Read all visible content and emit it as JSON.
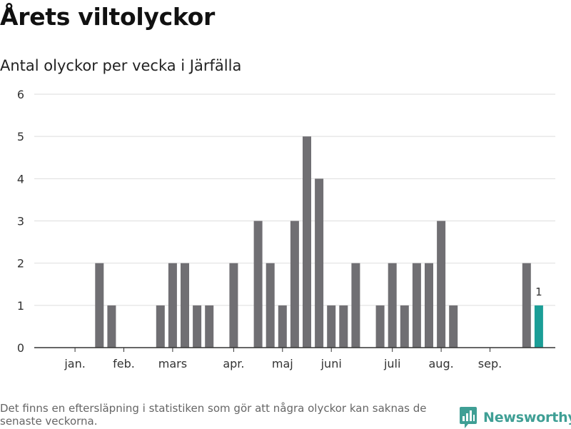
{
  "title": "Årets viltolyckor",
  "subtitle": "Antal olyckor per vecka i Järfälla",
  "footnote": "Det finns en eftersläpning i statistiken som gör att några olyckor kan saknas de senaste veckorna.",
  "brand": {
    "name": "Newsworthy",
    "icon": "newsworthy-logo-icon",
    "color": "#3f9f95"
  },
  "chart_data": {
    "type": "bar",
    "title": "",
    "xlabel": "",
    "ylabel": "",
    "ylim": [
      0,
      6
    ],
    "y_ticks": [
      "0",
      "1",
      "2",
      "3",
      "4",
      "5",
      "6"
    ],
    "grid": true,
    "legend": "none",
    "x_labels": [
      {
        "label": "jan.",
        "week": 2
      },
      {
        "label": "feb.",
        "week": 6
      },
      {
        "label": "mars",
        "week": 10
      },
      {
        "label": "apr.",
        "week": 15
      },
      {
        "label": "maj",
        "week": 19
      },
      {
        "label": "juni",
        "week": 23
      },
      {
        "label": "juli",
        "week": 28
      },
      {
        "label": "aug.",
        "week": 32
      },
      {
        "label": "sep.",
        "week": 36
      }
    ],
    "weeks": [
      1,
      2,
      3,
      4,
      5,
      6,
      7,
      8,
      9,
      10,
      11,
      12,
      13,
      14,
      15,
      16,
      17,
      18,
      19,
      20,
      21,
      22,
      23,
      24,
      25,
      26,
      27,
      28,
      29,
      30,
      31,
      32,
      33,
      34,
      35,
      36,
      37,
      38,
      39,
      40
    ],
    "values": [
      0,
      0,
      0,
      2,
      1,
      0,
      0,
      0,
      1,
      2,
      2,
      1,
      1,
      0,
      2,
      0,
      3,
      2,
      1,
      3,
      5,
      4,
      1,
      1,
      2,
      0,
      1,
      2,
      1,
      2,
      2,
      3,
      1,
      0,
      0,
      0,
      0,
      0,
      2,
      1
    ],
    "highlight": {
      "week": 40,
      "value": 1,
      "label": "1"
    },
    "colors": {
      "bar": "#706f73",
      "highlight": "#1b9e97",
      "grid": "#dedede",
      "axis": "#333333"
    }
  }
}
